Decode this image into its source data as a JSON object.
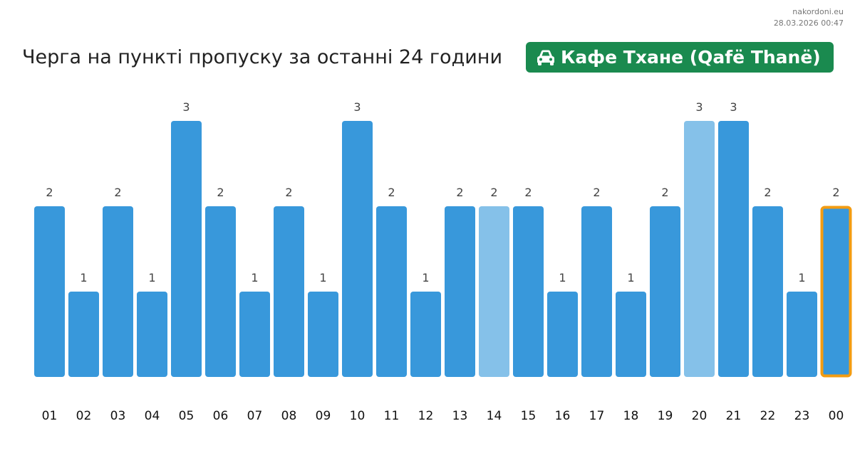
{
  "source": {
    "site": "nakordoni.eu",
    "timestamp": "28.03.2026 00:47"
  },
  "header": {
    "title": "Черга на пункті пропуску за останні 24 години",
    "checkpoint_icon": "car-icon",
    "checkpoint_name": "Кафе Тхане (Qafë Thanë)"
  },
  "colors": {
    "bar": "#3898db",
    "bar_light": "#85c1e9",
    "highlight_border": "#f39c12",
    "badge": "#1a8a4f"
  },
  "chart_data": {
    "type": "bar",
    "title": "Черга на пункті пропуску за останні 24 години",
    "xlabel": "",
    "ylabel": "",
    "categories": [
      "01",
      "02",
      "03",
      "04",
      "05",
      "06",
      "07",
      "08",
      "09",
      "10",
      "11",
      "12",
      "13",
      "14",
      "15",
      "16",
      "17",
      "18",
      "19",
      "20",
      "21",
      "22",
      "23",
      "00"
    ],
    "values": [
      2,
      1,
      2,
      1,
      3,
      2,
      1,
      2,
      1,
      3,
      2,
      1,
      2,
      2,
      2,
      1,
      2,
      1,
      2,
      3,
      3,
      2,
      1,
      2
    ],
    "light_bars": [
      "14",
      "20"
    ],
    "highlighted_bar": "00",
    "ylim": [
      0,
      3
    ],
    "grid": false,
    "legend": "none"
  }
}
